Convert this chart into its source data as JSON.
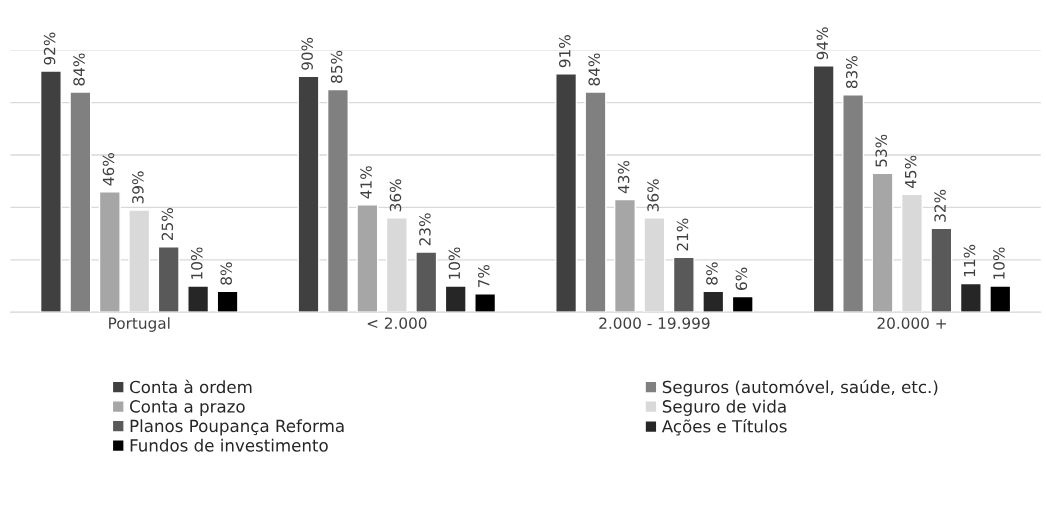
{
  "chart_data": {
    "type": "bar",
    "categories": [
      "Portugal",
      "< 2.000",
      "2.000 - 19.999",
      "20.000 +"
    ],
    "series": [
      {
        "name": "Conta à ordem",
        "color": "#404040",
        "values": [
          92,
          90,
          91,
          94
        ],
        "value_labels": [
          "92%",
          "90%",
          "91%",
          "94%"
        ]
      },
      {
        "name": "Seguros (automóvel, saúde, etc.)",
        "color": "#808080",
        "values": [
          84,
          85,
          84,
          83
        ],
        "value_labels": [
          "84%",
          "85%",
          "84%",
          "83%"
        ]
      },
      {
        "name": "Conta a prazo",
        "color": "#a6a6a6",
        "values": [
          46,
          41,
          43,
          53
        ],
        "value_labels": [
          "46%",
          "41%",
          "43%",
          "53%"
        ]
      },
      {
        "name": "Seguro de vida",
        "color": "#d9d9d9",
        "values": [
          39,
          36,
          36,
          45
        ],
        "value_labels": [
          "39%",
          "36%",
          "36%",
          "45%"
        ]
      },
      {
        "name": "Planos Poupança Reforma",
        "color": "#595959",
        "values": [
          25,
          23,
          21,
          32
        ],
        "value_labels": [
          "25%",
          "23%",
          "21%",
          "32%"
        ]
      },
      {
        "name": "Ações e Títulos",
        "color": "#262626",
        "values": [
          10,
          10,
          8,
          11
        ],
        "value_labels": [
          "10%",
          "10%",
          "8%",
          "11%"
        ]
      },
      {
        "name": "Fundos de investimento",
        "color": "#000000",
        "values": [
          8,
          7,
          6,
          10
        ],
        "value_labels": [
          "8%",
          "7%",
          "6%",
          "10%"
        ]
      }
    ],
    "ylim": [
      0,
      100
    ],
    "yticks": [
      {
        "value": 0,
        "label": null
      },
      {
        "value": 20,
        "label": null
      },
      {
        "value": 40,
        "label": null
      },
      {
        "value": 60,
        "label": null
      },
      {
        "value": 80,
        "label": null
      },
      {
        "value": 100,
        "label": null
      }
    ],
    "tick_labels": "x",
    "grid": "y",
    "legend": "bottom"
  }
}
